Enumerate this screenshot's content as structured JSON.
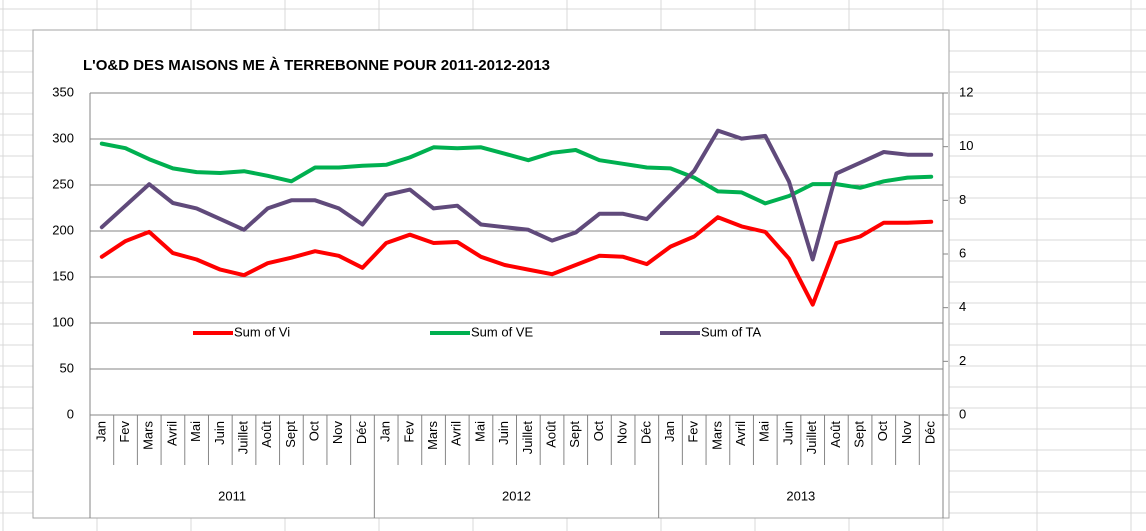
{
  "chart_data": {
    "type": "line",
    "title": "L'O&D DES MAISONS ME À TERREBONNE POUR 2011-2012-2013",
    "categories": [
      "Jan",
      "Fev",
      "Mars",
      "Avril",
      "Mai",
      "Juin",
      "Juillet",
      "Août",
      "Sept",
      "Oct",
      "Nov",
      "Déc",
      "Jan",
      "Fev",
      "Mars",
      "Avril",
      "Mai",
      "Juin",
      "Juillet",
      "Août",
      "Sept",
      "Oct",
      "Nov",
      "Déc",
      "Jan",
      "Fev",
      "Mars",
      "Avril",
      "Mai",
      "Juin",
      "Juillet",
      "Août",
      "Sept",
      "Oct",
      "Nov",
      "Déc"
    ],
    "category_groups": [
      "2011",
      "2012",
      "2013"
    ],
    "series": [
      {
        "name": "Sum of Vi",
        "color": "#ff0000",
        "values": [
          172,
          189,
          199,
          176,
          169,
          158,
          152,
          165,
          171,
          178,
          173,
          160,
          187,
          196,
          187,
          188,
          172,
          163,
          158,
          153,
          163,
          173,
          172,
          164,
          183,
          194,
          215,
          205,
          199,
          170,
          120,
          187,
          194,
          209,
          209,
          210
        ]
      },
      {
        "name": "Sum of VE",
        "color": "#00b050",
        "values": [
          295,
          290,
          278,
          268,
          264,
          263,
          265,
          260,
          254,
          269,
          269,
          271,
          272,
          280,
          291,
          290,
          291,
          284,
          277,
          285,
          288,
          277,
          273,
          269,
          268,
          258,
          243,
          242,
          230,
          238,
          251,
          251,
          247,
          254,
          258,
          259
        ]
      },
      {
        "name": "Sum of TA",
        "color": "#604a7b",
        "axis": "y2",
        "values": [
          7.0,
          7.8,
          8.6,
          7.9,
          7.7,
          7.3,
          6.9,
          7.7,
          8.0,
          8.0,
          7.7,
          7.1,
          8.2,
          8.4,
          7.7,
          7.8,
          7.1,
          7.0,
          6.9,
          6.5,
          6.8,
          7.5,
          7.5,
          7.3,
          8.2,
          9.1,
          10.6,
          10.3,
          10.4,
          8.7,
          5.8,
          9.0,
          9.4,
          9.8,
          9.7,
          9.7
        ]
      }
    ],
    "ylim": [
      0,
      350
    ],
    "yticks": [
      0,
      50,
      100,
      150,
      200,
      250,
      300,
      350
    ],
    "y2lim": [
      0,
      12
    ],
    "y2ticks": [
      0,
      2,
      4,
      6,
      8,
      10,
      12
    ],
    "grid": true,
    "legend": "inside"
  }
}
